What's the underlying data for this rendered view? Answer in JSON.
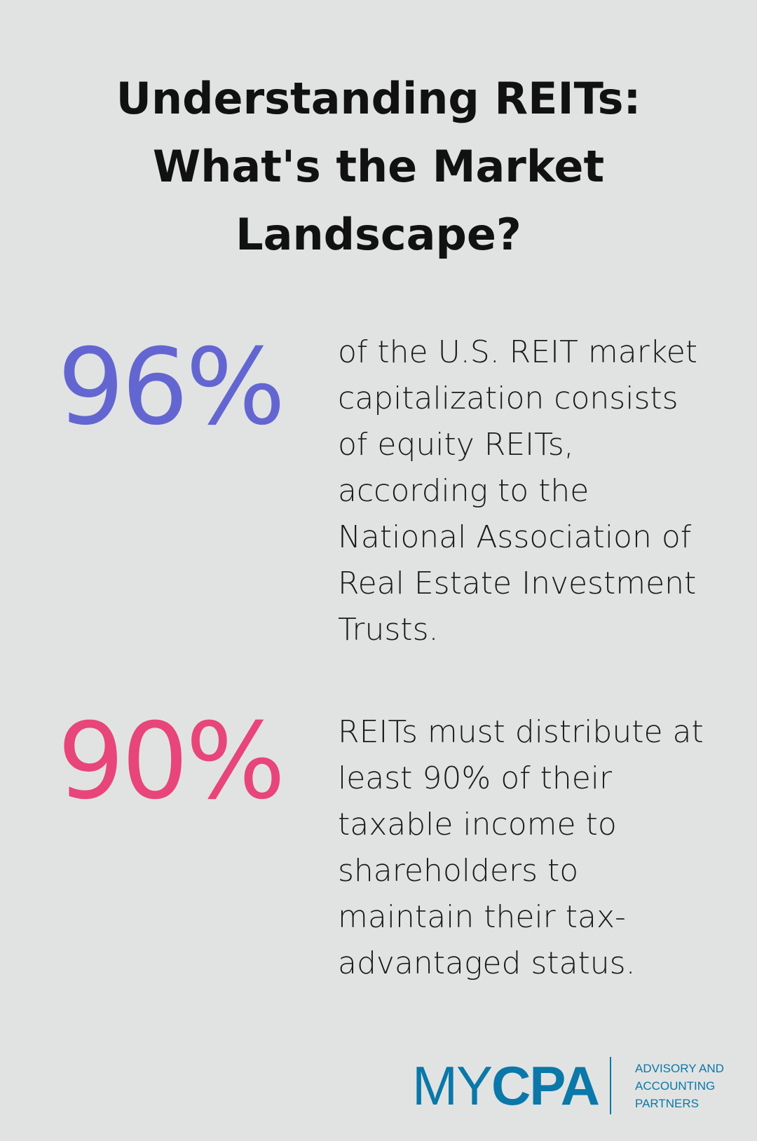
{
  "title": [
    "Understanding REITs:",
    "What's the Market",
    "Landscape?"
  ],
  "stats": [
    {
      "value": "96%",
      "color": "#6366d1",
      "text": "of the U.S. REIT market capitalization consists of equity REITs, according to the National Association of Real Estate Investment Trusts."
    },
    {
      "value": "90%",
      "color": "#e8457a",
      "text": "REITs must distribute at least 90% of their taxable income to shareholders to maintain their tax-advantaged status."
    }
  ],
  "logo": {
    "my": "MY",
    "cpa": "CPA",
    "tagline": [
      "ADVISORY AND",
      "ACCOUNTING",
      "PARTNERS"
    ],
    "color": "#0a78a8"
  }
}
